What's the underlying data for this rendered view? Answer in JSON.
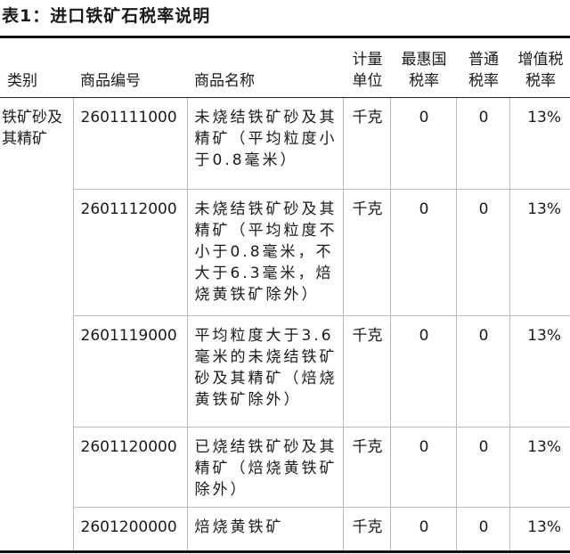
{
  "title": "表1：进口铁矿石税率说明",
  "table": {
    "headers": [
      "类别",
      "商品编号",
      "商品名称",
      "计量单位",
      "最惠国税率",
      "普通税率",
      "增值税税率"
    ],
    "category": "铁矿砂及其精矿",
    "rows": [
      [
        "2601111000",
        "未烧结铁矿砂及其精矿（平均粒度小于0.8毫米）",
        "千克",
        "0",
        "0",
        "13%"
      ],
      [
        "2601112000",
        "未烧结铁矿砂及其精矿（平均粒度不小于0.8毫米，不大于6.3毫米，焙烧黄铁矿除外）",
        "千克",
        "0",
        "0",
        "13%"
      ],
      [
        "2601119000",
        "平均粒度大于3.6毫米的未烧结铁矿砂及其精矿（焙烧黄铁矿除外）",
        "千克",
        "0",
        "0",
        "13%"
      ],
      [
        "2601120000",
        "已烧结铁矿砂及其精矿（焙烧黄铁矿除外）",
        "千克",
        "0",
        "0",
        "13%"
      ],
      [
        "2601200000",
        "焙烧黄铁矿",
        "千克",
        "0",
        "0",
        "13%"
      ]
    ]
  }
}
